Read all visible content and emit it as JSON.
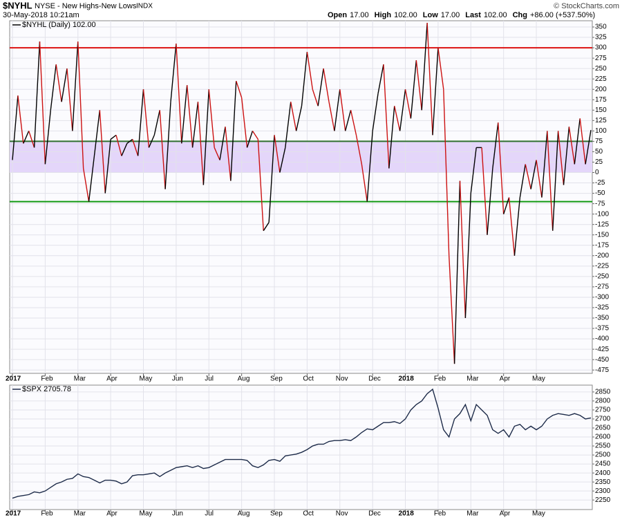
{
  "header": {
    "symbol": "$NYHL",
    "description": "NYSE - New Highs-New Lows",
    "exchange": "INDX",
    "datetime": "30-May-2018 10:21am",
    "copyright": "© StockCharts.com",
    "quote": [
      {
        "label": "Open",
        "value": "17.00"
      },
      {
        "label": "High",
        "value": "102.00"
      },
      {
        "label": "Low",
        "value": "17.00"
      },
      {
        "label": "Last",
        "value": "102.00"
      },
      {
        "label": "Chg",
        "value": "+86.00 (+537.50%)"
      }
    ]
  },
  "chart_data": [
    {
      "type": "line",
      "legend": "$NYHL (Daily) 102.00",
      "up_color": "#000000",
      "down_color": "#cc1111",
      "categories": [
        "2017",
        null,
        null,
        null,
        null,
        null,
        "Feb",
        null,
        null,
        null,
        null,
        null,
        "Mar",
        null,
        null,
        null,
        null,
        null,
        "Apr",
        null,
        null,
        null,
        null,
        null,
        "May",
        null,
        null,
        null,
        null,
        null,
        "Jun",
        null,
        null,
        null,
        null,
        null,
        "Jul",
        null,
        null,
        null,
        null,
        null,
        "Aug",
        null,
        null,
        null,
        null,
        null,
        "Sep",
        null,
        null,
        null,
        null,
        null,
        "Oct",
        null,
        null,
        null,
        null,
        null,
        "Nov",
        null,
        null,
        null,
        null,
        null,
        "Dec",
        null,
        null,
        null,
        null,
        null,
        "2018",
        null,
        null,
        null,
        null,
        null,
        "Feb",
        null,
        null,
        null,
        null,
        null,
        "Mar",
        null,
        null,
        null,
        null,
        null,
        "Apr",
        null,
        null,
        null,
        null,
        null,
        "May",
        null,
        null,
        null,
        null,
        null,
        null,
        null,
        null,
        null,
        null
      ],
      "values": [
        30,
        185,
        70,
        100,
        60,
        315,
        20,
        150,
        260,
        170,
        250,
        100,
        315,
        10,
        -70,
        40,
        150,
        -50,
        80,
        90,
        40,
        70,
        80,
        40,
        200,
        60,
        90,
        150,
        -40,
        170,
        310,
        70,
        210,
        60,
        170,
        -30,
        200,
        60,
        30,
        110,
        -20,
        220,
        180,
        60,
        100,
        80,
        -140,
        -120,
        90,
        0,
        60,
        170,
        100,
        160,
        290,
        200,
        160,
        250,
        170,
        100,
        200,
        100,
        150,
        90,
        20,
        -70,
        100,
        190,
        260,
        10,
        160,
        100,
        200,
        130,
        270,
        150,
        360,
        90,
        300,
        200,
        -200,
        -460,
        -20,
        -350,
        -50,
        60,
        60,
        -150,
        10,
        120,
        -100,
        -60,
        -200,
        -60,
        20,
        -40,
        30,
        -60,
        100,
        -140,
        100,
        -30,
        110,
        20,
        130,
        20,
        102
      ],
      "ylim": [
        -483,
        365
      ],
      "yticks": [
        350,
        325,
        300,
        275,
        250,
        225,
        200,
        175,
        150,
        125,
        100,
        75,
        50,
        25,
        0,
        -25,
        -50,
        -75,
        -100,
        -125,
        -150,
        -175,
        -200,
        -225,
        -250,
        -275,
        -300,
        -325,
        -350,
        -375,
        -400,
        -425,
        -450,
        -475
      ],
      "grid": true,
      "hlines": [
        {
          "value": 300,
          "color": "#dd1111"
        },
        {
          "value": 75,
          "color": "#2f6f2f"
        },
        {
          "value": -70,
          "color": "#119911"
        }
      ],
      "band": {
        "from": 0,
        "to": 75,
        "color": "#e4d6fa"
      }
    },
    {
      "type": "line",
      "legend": "$SPX 2705.78",
      "color": "#1c2a48",
      "categories": [
        "2017",
        null,
        null,
        null,
        null,
        null,
        "Feb",
        null,
        null,
        null,
        null,
        null,
        "Mar",
        null,
        null,
        null,
        null,
        null,
        "Apr",
        null,
        null,
        null,
        null,
        null,
        "May",
        null,
        null,
        null,
        null,
        null,
        "Jun",
        null,
        null,
        null,
        null,
        null,
        "Jul",
        null,
        null,
        null,
        null,
        null,
        "Aug",
        null,
        null,
        null,
        null,
        null,
        "Sep",
        null,
        null,
        null,
        null,
        null,
        "Oct",
        null,
        null,
        null,
        null,
        null,
        "Nov",
        null,
        null,
        null,
        null,
        null,
        "Dec",
        null,
        null,
        null,
        null,
        null,
        "2018",
        null,
        null,
        null,
        null,
        null,
        "Feb",
        null,
        null,
        null,
        null,
        null,
        "Mar",
        null,
        null,
        null,
        null,
        null,
        "Apr",
        null,
        null,
        null,
        null,
        null,
        "May",
        null,
        null,
        null,
        null,
        null,
        null,
        null,
        null,
        null,
        null
      ],
      "values": [
        2260,
        2270,
        2275,
        2280,
        2295,
        2290,
        2300,
        2320,
        2340,
        2350,
        2365,
        2370,
        2395,
        2380,
        2375,
        2360,
        2345,
        2360,
        2360,
        2355,
        2340,
        2350,
        2385,
        2390,
        2390,
        2395,
        2400,
        2380,
        2400,
        2415,
        2430,
        2435,
        2440,
        2430,
        2440,
        2425,
        2430,
        2445,
        2460,
        2475,
        2475,
        2475,
        2475,
        2470,
        2440,
        2430,
        2445,
        2470,
        2475,
        2465,
        2495,
        2500,
        2505,
        2515,
        2530,
        2550,
        2560,
        2560,
        2575,
        2580,
        2580,
        2585,
        2580,
        2600,
        2625,
        2645,
        2640,
        2660,
        2680,
        2680,
        2685,
        2675,
        2700,
        2750,
        2780,
        2800,
        2840,
        2865,
        2760,
        2640,
        2600,
        2700,
        2730,
        2780,
        2690,
        2780,
        2750,
        2720,
        2640,
        2620,
        2640,
        2600,
        2660,
        2670,
        2640,
        2660,
        2640,
        2660,
        2700,
        2720,
        2730,
        2725,
        2720,
        2730,
        2720,
        2700,
        2705.78
      ],
      "ylim": [
        2197,
        2888
      ],
      "yticks": [
        2850,
        2800,
        2750,
        2700,
        2650,
        2600,
        2550,
        2500,
        2450,
        2400,
        2350,
        2300,
        2250
      ],
      "grid": true
    }
  ]
}
